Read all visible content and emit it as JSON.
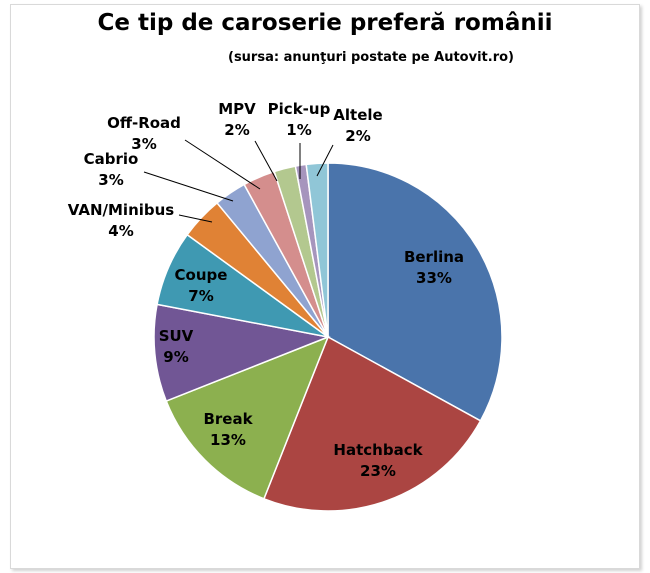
{
  "chart_data": {
    "type": "pie",
    "title": "Ce tip de caroserie preferă românii",
    "subtitle": "(sursa: anunţuri postate pe Autovit.ro)",
    "categories": [
      "Berlina",
      "Hatchback",
      "Break",
      "SUV",
      "Coupe",
      "VAN/Minibus",
      "Cabrio",
      "Off-Road",
      "MPV",
      "Pick-up",
      "Altele"
    ],
    "values": [
      33,
      23,
      13,
      9,
      7,
      4,
      3,
      3,
      2,
      1,
      2
    ],
    "value_labels": [
      "33%",
      "23%",
      "13%",
      "9%",
      "7%",
      "4%",
      "3%",
      "3%",
      "2%",
      "1%",
      "2%"
    ],
    "colors": [
      "#4a74ab",
      "#ab4542",
      "#8cb04f",
      "#715695",
      "#3f99b2",
      "#e08235",
      "#8fa3d0",
      "#d48e8d",
      "#b3c88f",
      "#a695bd",
      "#90c6d7"
    ],
    "legend": "none",
    "start_angle_deg": 0,
    "direction": "clockwise"
  }
}
